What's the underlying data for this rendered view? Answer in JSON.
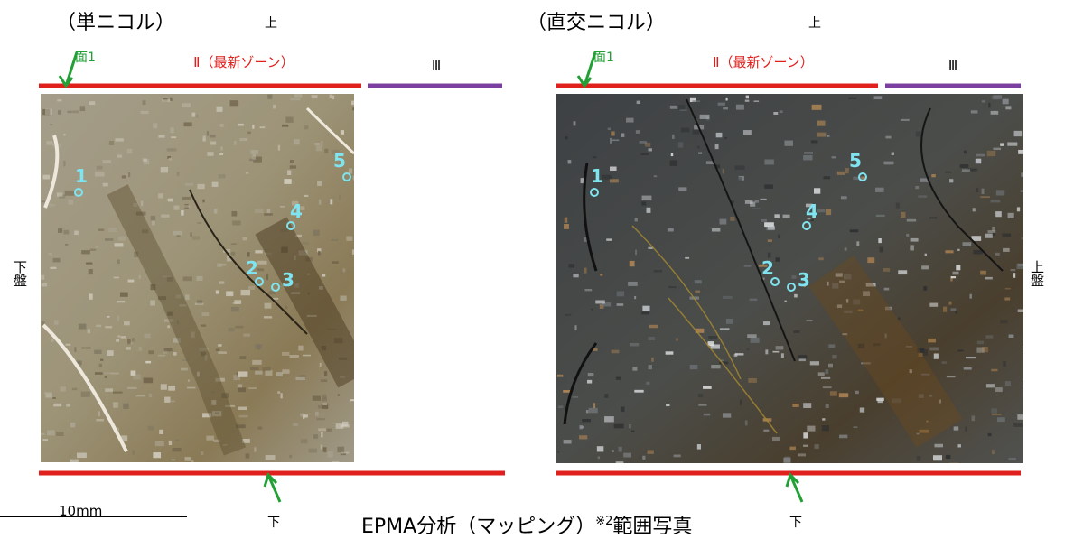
{
  "panels": [
    {
      "title": "（単ニコル）",
      "top": "上",
      "surface": "面1",
      "zone_2": "Ⅱ（最新ゾーン）",
      "zone_3": "Ⅲ",
      "bottom": "下",
      "points": [
        "1",
        "2",
        "3",
        "4",
        "5"
      ]
    },
    {
      "title": "（直交ニコル）",
      "top": "上",
      "surface": "面1",
      "zone_2": "Ⅱ（最新ゾーン）",
      "zone_3": "Ⅲ",
      "bottom": "下",
      "points": [
        "1",
        "2",
        "3",
        "4",
        "5"
      ]
    }
  ],
  "left_side": "下盤",
  "right_side": "上盤",
  "scale": "10mm",
  "caption": {
    "main": "EPMA分析（マッピング）",
    "note": "※2",
    "tail": "範囲写真"
  }
}
